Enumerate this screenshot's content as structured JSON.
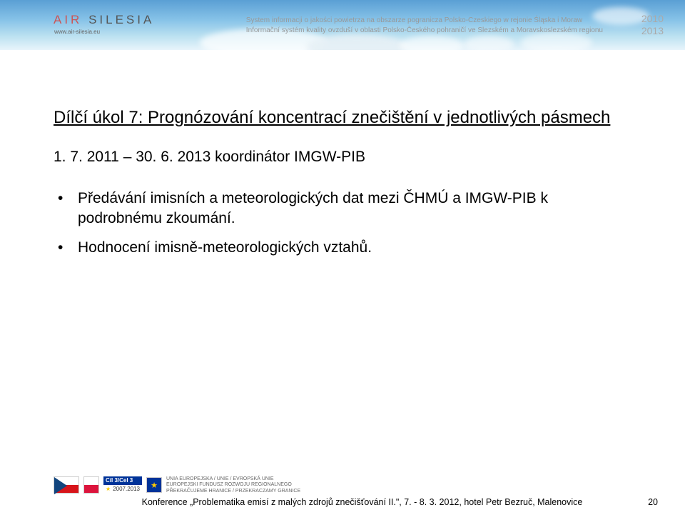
{
  "header": {
    "logo_text_1": "AIR",
    "logo_text_2": " SILESIA",
    "logo_url": "www.air-silesia.eu",
    "subtitle_line1": "System informacji o jakości powietrza na obszarze pogranicza Polsko-Czeskiego w rejonie Śląska i Moraw",
    "subtitle_line2": "Informační systém kvality ovzduší v oblasti Polsko-Českého pohraničí ve Slezském a Moravskoslezském regionu",
    "year1": "2010",
    "year2": "2013"
  },
  "content": {
    "title": "Dílčí úkol 7: Prognózování koncentrací znečištění v jednotlivých pásmech",
    "date_line": "1. 7. 2011 – 30. 6. 2013 koordinátor IMGW-PIB",
    "bullets": [
      "Předávání imisních a meteorologických dat mezi ČHMÚ a IMGW-PIB k podrobnému zkoumání.",
      "Hodnocení imisně-meteorologických vztahů."
    ]
  },
  "footer": {
    "program_top": "Cíl 3/Cel 3",
    "program_bot": "2007.2013",
    "eu_line1": "UNIA EUROPEJSKA / UNIE / EVROPSKÁ UNIE",
    "eu_line2": "EUROPEJSKI FUNDUSZ ROZWOJU REGIONALNEGO",
    "eu_line3": "PŘEKRAČUJEME HRANICE / PRZEKRACZAMY GRANICE",
    "text": "Konference „Problematika emisí z malých zdrojů znečišťování II.\", 7. - 8. 3. 2012, hotel Petr Bezruč, Malenovice",
    "page": "20"
  }
}
